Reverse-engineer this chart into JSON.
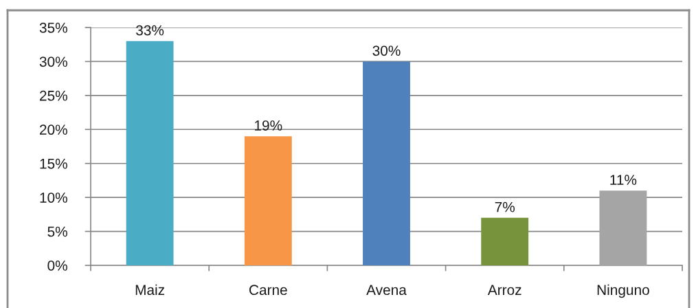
{
  "chart_data": {
    "type": "bar",
    "categories": [
      "Maiz",
      "Carne",
      "Avena",
      "Arroz",
      "Ninguno"
    ],
    "values": [
      33,
      19,
      30,
      7,
      11
    ],
    "colors": [
      "#4bacc6",
      "#f79646",
      "#4f81bd",
      "#77933c",
      "#a5a5a5"
    ],
    "value_labels": [
      "33%",
      "19%",
      "30%",
      "7%",
      "11%"
    ],
    "ylim": [
      0,
      35
    ],
    "yticks": [
      {
        "value": 0,
        "label": "0%"
      },
      {
        "value": 5,
        "label": "5%"
      },
      {
        "value": 10,
        "label": "10%"
      },
      {
        "value": 15,
        "label": "15%"
      },
      {
        "value": 20,
        "label": "20%"
      },
      {
        "value": 25,
        "label": "25%"
      },
      {
        "value": 30,
        "label": "30%"
      },
      {
        "value": 35,
        "label": "35%"
      }
    ],
    "grid": "y",
    "legend": false
  }
}
